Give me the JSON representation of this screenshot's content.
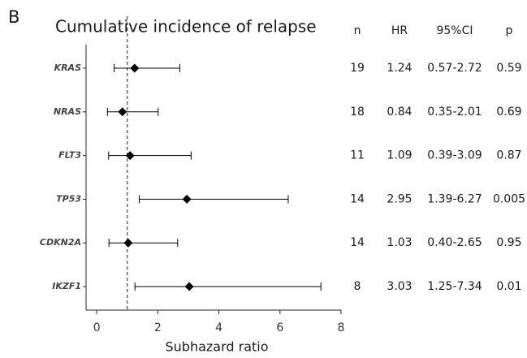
{
  "chart_data": {
    "type": "forest",
    "panel_label": "B",
    "title": "Cumulative incidence of relapse",
    "columns": [
      "n",
      "HR",
      "95%CI",
      "p"
    ],
    "categories": [
      "KRAS",
      "NRAS",
      "FLT3",
      "TP53",
      "CDKN2A",
      "IKZF1"
    ],
    "n": [
      19,
      18,
      11,
      14,
      14,
      8
    ],
    "values": [
      1.24,
      0.84,
      1.09,
      2.95,
      1.03,
      3.03
    ],
    "ci_lower": [
      0.57,
      0.35,
      0.39,
      1.39,
      0.4,
      1.25
    ],
    "ci_upper": [
      2.72,
      2.01,
      3.09,
      6.27,
      2.65,
      7.34
    ],
    "ci_labels": [
      "0.57-2.72",
      "0.35-2.01",
      "0.39-3.09",
      "1.39-6.27",
      "0.40-2.65",
      "1.25-7.34"
    ],
    "p_values": [
      0.59,
      0.69,
      0.87,
      0.005,
      0.95,
      0.01
    ],
    "xlabel": "Subhazard ratio",
    "xlim": [
      -0.35,
      8
    ],
    "xticks": [
      0,
      2,
      4,
      6,
      8
    ],
    "reference_line": 1,
    "color": "#000000"
  }
}
